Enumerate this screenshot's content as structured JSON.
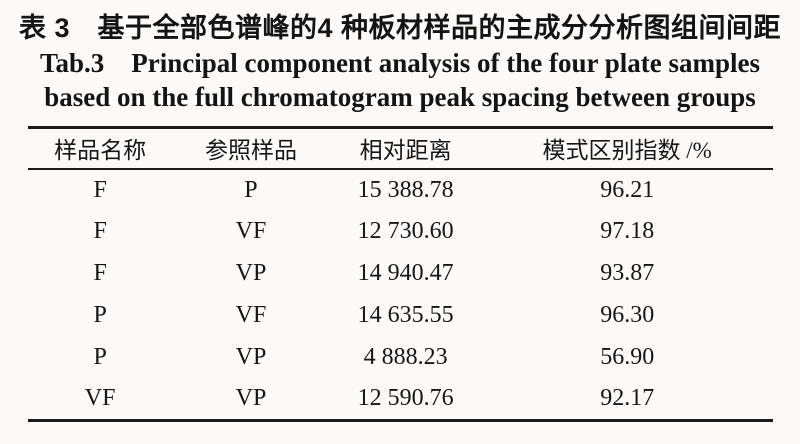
{
  "caption": {
    "title_cn": "表 3　基于全部色谱峰的4 种板材样品的主成分分析图组间间距",
    "title_en_line1": "Tab.3　Principal component analysis of the four plate samples",
    "title_en_line2": "based on the full chromatogram peak spacing between groups"
  },
  "table": {
    "headers": {
      "sample_name": "样品名称",
      "reference_sample": "参照样品",
      "relative_distance": "相对距离",
      "pattern_discrimination_index": "模式区别指数 /%"
    },
    "rows": [
      {
        "sample": "F",
        "reference": "P",
        "distance": "15 388.78",
        "index": "96.21"
      },
      {
        "sample": "F",
        "reference": "VF",
        "distance": "12 730.60",
        "index": "97.18"
      },
      {
        "sample": "F",
        "reference": "VP",
        "distance": "14 940.47",
        "index": "93.87"
      },
      {
        "sample": "P",
        "reference": "VF",
        "distance": "14 635.55",
        "index": "96.30"
      },
      {
        "sample": "P",
        "reference": "VP",
        "distance": "4 888.23",
        "index": "56.90"
      },
      {
        "sample": "VF",
        "reference": "VP",
        "distance": "12 590.76",
        "index": "92.17"
      }
    ]
  },
  "colors": {
    "text": "#161616",
    "background": "#fcfbf9",
    "rule": "#1a1a1a"
  }
}
